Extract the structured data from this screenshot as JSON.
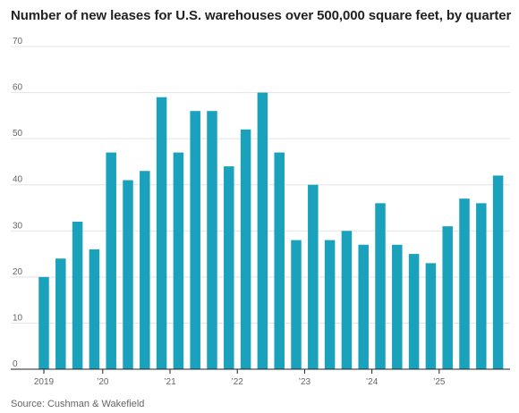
{
  "chart_data": {
    "type": "bar",
    "title": "Number of new leases for U.S. warehouses over 500,000 square feet, by quarter",
    "xlabel": "",
    "ylabel": "",
    "ylim": [
      0,
      70
    ],
    "yticks": [
      0,
      10,
      20,
      30,
      40,
      50,
      60,
      70
    ],
    "grid": true,
    "legend": "none",
    "categories": [
      "2019 Q1",
      "2019 Q2",
      "2019 Q3",
      "2019 Q4",
      "2020 Q1",
      "2020 Q2",
      "2020 Q3",
      "2020 Q4",
      "2021 Q1",
      "2021 Q2",
      "2021 Q3",
      "2021 Q4",
      "2022 Q1",
      "2022 Q2",
      "2022 Q3",
      "2022 Q4",
      "2023 Q1",
      "2023 Q2",
      "2023 Q3",
      "2023 Q4",
      "2024 Q1",
      "2024 Q2",
      "2024 Q3",
      "2024 Q4",
      "2025 Q1",
      "2025 Q2",
      "2025 Q3",
      "2025 Q4"
    ],
    "values": [
      20,
      24,
      32,
      26,
      47,
      41,
      43,
      59,
      47,
      56,
      56,
      44,
      52,
      60,
      47,
      28,
      40,
      28,
      30,
      27,
      36,
      27,
      25,
      23,
      31,
      37,
      36,
      42
    ],
    "xtick_labels": [
      "2019",
      "’20",
      "’21",
      "’22",
      "’23",
      "’24",
      "’25"
    ],
    "bar_color": "#1aa2bd"
  },
  "source": "Source: Cushman & Wakefield"
}
